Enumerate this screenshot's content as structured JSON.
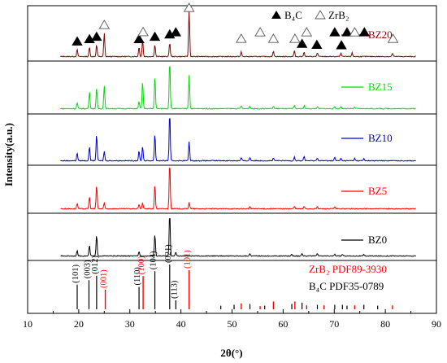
{
  "chart_data": {
    "type": "line",
    "xlabel": "2θ(°)",
    "ylabel": "Intensity(a.u.)",
    "xlim": [
      10,
      90
    ],
    "x_ticks": [
      10,
      20,
      30,
      40,
      50,
      60,
      70,
      80,
      90
    ],
    "grid": false,
    "legend": {
      "position": "top",
      "entries": [
        {
          "symbol": "filled-triangle",
          "label": "B₄C"
        },
        {
          "symbol": "open-triangle",
          "label": "ZrB₂"
        }
      ]
    },
    "series": [
      {
        "name": "BZ20",
        "color": "#8b0000",
        "peaks": [
          [
            19.7,
            0.15
          ],
          [
            22.1,
            0.2
          ],
          [
            23.5,
            0.25
          ],
          [
            25.0,
            0.5
          ],
          [
            31.8,
            0.2
          ],
          [
            32.5,
            0.35
          ],
          [
            34.9,
            0.25
          ],
          [
            37.8,
            0.3
          ],
          [
            41.6,
            1.0
          ],
          [
            51.8,
            0.1
          ],
          [
            58.1,
            0.12
          ],
          [
            62.2,
            0.12
          ],
          [
            64.1,
            0.1
          ],
          [
            66.7,
            0.08
          ],
          [
            71.3,
            0.07
          ],
          [
            73.5,
            0.08
          ],
          [
            81.4,
            0.07
          ]
        ],
        "markers": [
          {
            "x": 19.7,
            "phase": "B4C"
          },
          {
            "x": 22.1,
            "phase": "B4C"
          },
          {
            "x": 23.5,
            "phase": "B4C"
          },
          {
            "x": 25.0,
            "phase": "ZrB2"
          },
          {
            "x": 31.8,
            "phase": "B4C"
          },
          {
            "x": 32.6,
            "phase": "ZrB2"
          },
          {
            "x": 34.9,
            "phase": "B4C"
          },
          {
            "x": 37.8,
            "phase": "B4C"
          },
          {
            "x": 39.0,
            "phase": "B4C"
          },
          {
            "x": 41.6,
            "phase": "ZrB2"
          },
          {
            "x": 51.8,
            "phase": "ZrB2"
          },
          {
            "x": 55.5,
            "phase": "ZrB2"
          },
          {
            "x": 58.1,
            "phase": "ZrB2"
          },
          {
            "x": 62.3,
            "phase": "ZrB2"
          },
          {
            "x": 63.7,
            "phase": "B4C"
          },
          {
            "x": 64.6,
            "phase": "ZrB2"
          },
          {
            "x": 66.6,
            "phase": "B4C"
          },
          {
            "x": 70.1,
            "phase": "B4C"
          },
          {
            "x": 71.4,
            "phase": "B4C"
          },
          {
            "x": 72.5,
            "phase": "B4C"
          },
          {
            "x": 74.0,
            "phase": "ZrB2"
          },
          {
            "x": 75.9,
            "phase": "B4C"
          },
          {
            "x": 81.5,
            "phase": "ZrB2"
          }
        ]
      },
      {
        "name": "BZ15",
        "color": "#00dd00",
        "peaks": [
          [
            19.7,
            0.12
          ],
          [
            22.1,
            0.35
          ],
          [
            23.5,
            0.42
          ],
          [
            25.0,
            0.48
          ],
          [
            31.8,
            0.15
          ],
          [
            32.5,
            0.55
          ],
          [
            34.9,
            0.67
          ],
          [
            37.8,
            1.0
          ],
          [
            41.6,
            0.7
          ],
          [
            51.8,
            0.06
          ],
          [
            53.5,
            0.05
          ],
          [
            58.1,
            0.05
          ],
          [
            62.2,
            0.06
          ],
          [
            64.1,
            0.06
          ],
          [
            66.7,
            0.04
          ],
          [
            70.1,
            0.04
          ],
          [
            71.3,
            0.04
          ],
          [
            74.0,
            0.03
          ]
        ]
      },
      {
        "name": "BZ10",
        "color": "#0000dd",
        "peaks": [
          [
            19.7,
            0.16
          ],
          [
            22.1,
            0.3
          ],
          [
            23.5,
            0.55
          ],
          [
            25.0,
            0.2
          ],
          [
            31.8,
            0.2
          ],
          [
            32.5,
            0.3
          ],
          [
            34.9,
            0.55
          ],
          [
            37.8,
            1.0
          ],
          [
            41.6,
            0.4
          ],
          [
            51.8,
            0.06
          ],
          [
            53.5,
            0.07
          ],
          [
            58.1,
            0.05
          ],
          [
            62.2,
            0.08
          ],
          [
            64.1,
            0.09
          ],
          [
            66.7,
            0.06
          ],
          [
            70.1,
            0.07
          ],
          [
            71.3,
            0.05
          ],
          [
            74.0,
            0.05
          ],
          [
            75.8,
            0.04
          ]
        ]
      },
      {
        "name": "BZ5",
        "color": "#ff0000",
        "peaks": [
          [
            19.7,
            0.12
          ],
          [
            22.1,
            0.26
          ],
          [
            23.5,
            0.5
          ],
          [
            25.0,
            0.12
          ],
          [
            31.8,
            0.1
          ],
          [
            32.5,
            0.12
          ],
          [
            34.9,
            0.5
          ],
          [
            37.8,
            1.0
          ],
          [
            41.6,
            0.14
          ],
          [
            53.5,
            0.04
          ],
          [
            62.2,
            0.05
          ],
          [
            64.1,
            0.05
          ],
          [
            66.7,
            0.04
          ],
          [
            70.1,
            0.04
          ]
        ]
      },
      {
        "name": "BZ0",
        "color": "#000000",
        "peaks": [
          [
            19.7,
            0.12
          ],
          [
            22.1,
            0.24
          ],
          [
            23.5,
            0.48
          ],
          [
            31.8,
            0.1
          ],
          [
            34.9,
            0.5
          ],
          [
            37.8,
            1.0
          ],
          [
            39.0,
            0.08
          ],
          [
            53.5,
            0.05
          ],
          [
            61.7,
            0.04
          ],
          [
            63.7,
            0.06
          ],
          [
            66.7,
            0.05
          ],
          [
            70.1,
            0.04
          ],
          [
            71.6,
            0.04
          ],
          [
            75.8,
            0.03
          ]
        ]
      }
    ],
    "reference_patterns": [
      {
        "label": "ZrB₂ PDF89-3930",
        "color": "#ff0000",
        "lines": [
          [
            25.2,
            0.5
          ],
          [
            32.6,
            0.85
          ],
          [
            41.6,
            1.0
          ],
          [
            51.8,
            0.15
          ],
          [
            55.5,
            0.08
          ],
          [
            58.1,
            0.2
          ],
          [
            62.3,
            0.2
          ],
          [
            64.6,
            0.1
          ],
          [
            68.0,
            0.1
          ],
          [
            74.0,
            0.1
          ],
          [
            81.4,
            0.1
          ]
        ],
        "hkl": [
          {
            "x": 25.2,
            "label": "(001)"
          },
          {
            "x": 32.6,
            "label": "(100)"
          },
          {
            "x": 41.6,
            "label": "(101)"
          }
        ]
      },
      {
        "label": "B₄C PDF35-0789",
        "color": "#000000",
        "lines": [
          [
            19.7,
            0.55
          ],
          [
            22.0,
            0.65
          ],
          [
            23.5,
            0.75
          ],
          [
            31.8,
            0.5
          ],
          [
            34.9,
            0.85
          ],
          [
            37.8,
            1.0
          ],
          [
            39.0,
            0.2
          ],
          [
            47.8,
            0.08
          ],
          [
            50.4,
            0.1
          ],
          [
            53.5,
            0.12
          ],
          [
            56.4,
            0.08
          ],
          [
            61.7,
            0.12
          ],
          [
            63.7,
            0.15
          ],
          [
            66.7,
            0.1
          ],
          [
            70.1,
            0.1
          ],
          [
            71.6,
            0.1
          ],
          [
            72.5,
            0.08
          ],
          [
            75.8,
            0.1
          ],
          [
            78.5,
            0.08
          ]
        ],
        "hkl": [
          {
            "x": 19.7,
            "label": "(101)"
          },
          {
            "x": 22.0,
            "label": "(003)"
          },
          {
            "x": 23.5,
            "label": "(012)"
          },
          {
            "x": 31.8,
            "label": "(110)"
          },
          {
            "x": 34.9,
            "label": "(104)"
          },
          {
            "x": 37.8,
            "label": "(021)"
          },
          {
            "x": 39.0,
            "label": "(113)"
          }
        ]
      }
    ]
  }
}
